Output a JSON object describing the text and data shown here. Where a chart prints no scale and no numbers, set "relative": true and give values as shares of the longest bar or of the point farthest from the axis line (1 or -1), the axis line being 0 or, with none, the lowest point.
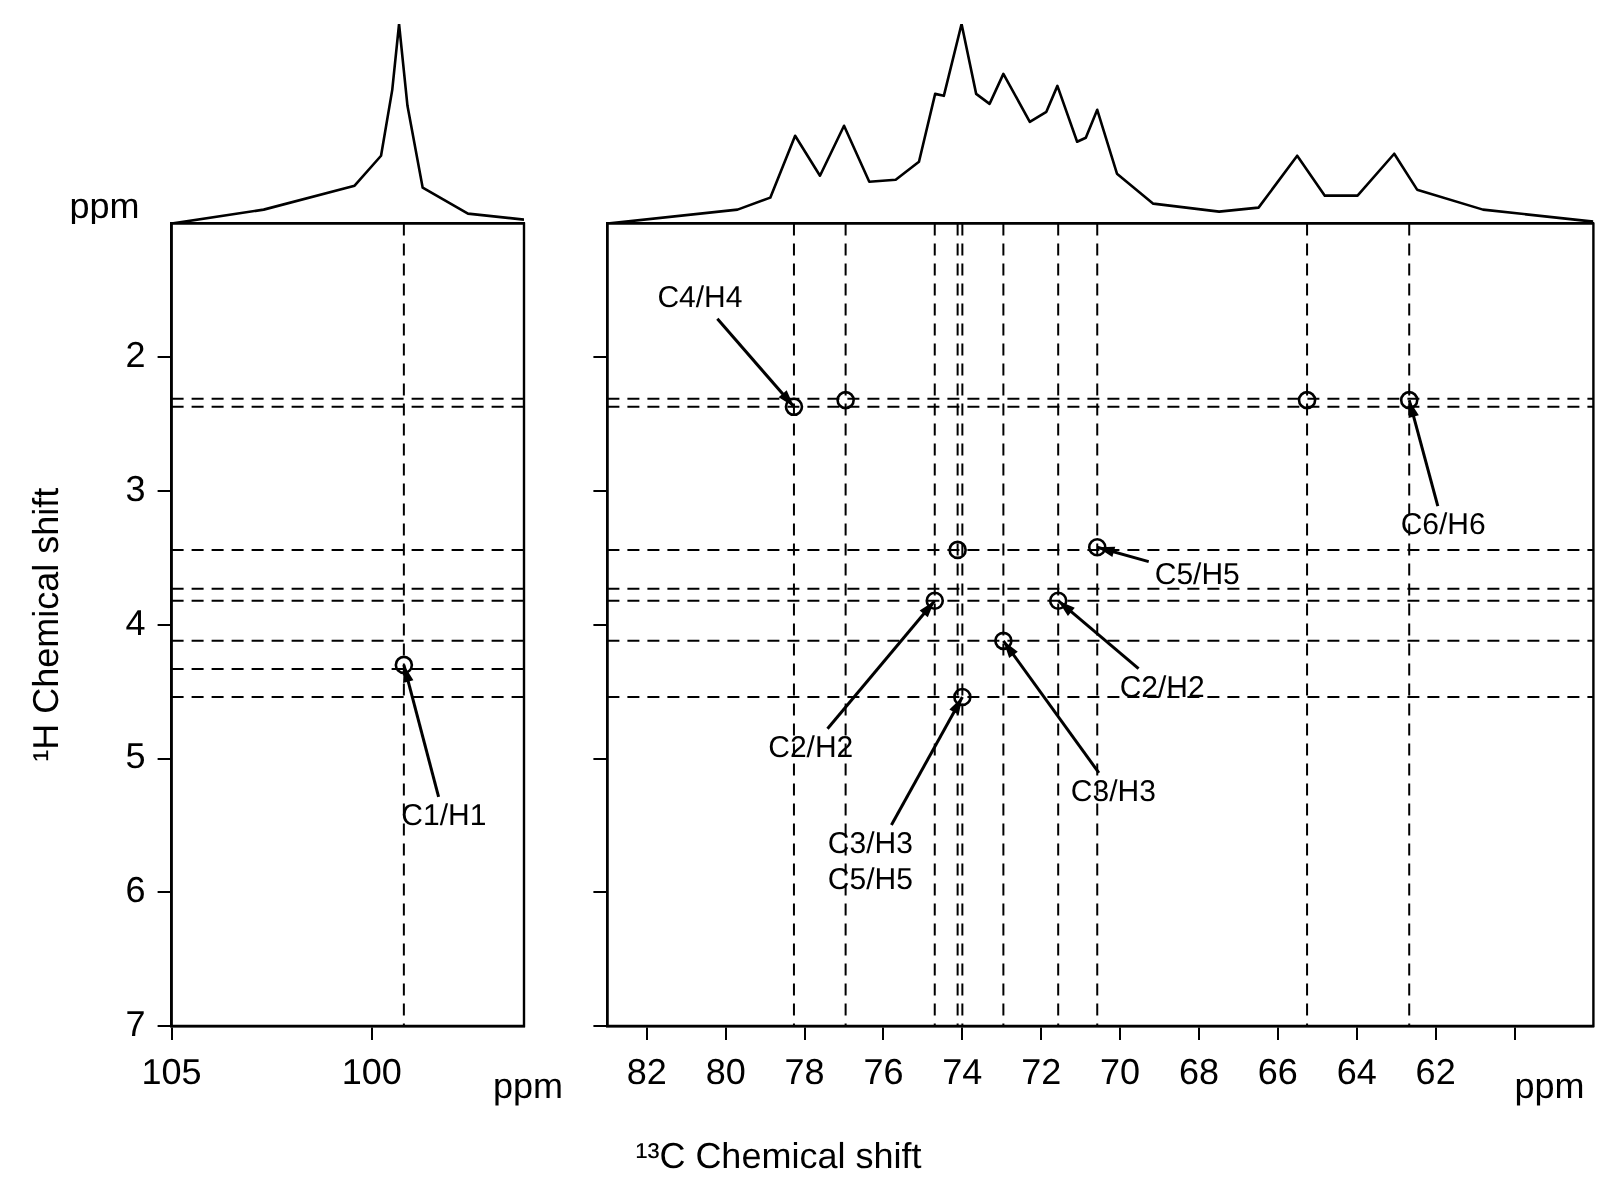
{
  "chart_data": [
    {
      "type": "line",
      "relative": true,
      "color": "#000000",
      "xlim": [
        105,
        96.2
      ],
      "tick_labels": false,
      "annotations": [
        "ppm"
      ],
      "x": [
        105,
        102.7,
        100.43,
        99.77,
        99.49,
        99.32,
        99.11,
        98.73,
        97.6,
        96.2
      ],
      "values": [
        0,
        0.07,
        0.19,
        0.34,
        0.67,
        1.0,
        0.59,
        0.18,
        0.05,
        0.02
      ]
    },
    {
      "type": "line",
      "relative": true,
      "color": "#000000",
      "xlim": [
        83,
        58
      ],
      "tick_labels": false,
      "x": [
        83,
        79.7,
        78.87,
        78.24,
        77.61,
        77.0,
        76.36,
        75.69,
        75.1,
        74.69,
        74.47,
        74.02,
        73.65,
        73.31,
        72.96,
        72.29,
        71.87,
        71.59,
        71.09,
        70.87,
        70.58,
        70.08,
        69.16,
        67.49,
        66.49,
        65.51,
        64.81,
        63.98,
        63.05,
        62.47,
        60.8,
        58
      ],
      "values": [
        0,
        0.07,
        0.13,
        0.44,
        0.24,
        0.49,
        0.21,
        0.22,
        0.31,
        0.65,
        0.64,
        1.0,
        0.65,
        0.6,
        0.75,
        0.51,
        0.56,
        0.69,
        0.41,
        0.43,
        0.57,
        0.25,
        0.1,
        0.06,
        0.08,
        0.34,
        0.14,
        0.14,
        0.35,
        0.17,
        0.07,
        0.01
      ]
    },
    {
      "type": "scatter",
      "color": "#000000",
      "marker": "circle",
      "xlim": [
        105,
        96.2
      ],
      "ylim": [
        7,
        1
      ],
      "xticks": [
        105,
        100
      ],
      "yticks": [
        2,
        3,
        4,
        5,
        6,
        7
      ],
      "xlabel": "ppm",
      "ylabel": "¹H Chemical shift",
      "x": [
        99.2
      ],
      "values": [
        4.3
      ],
      "ref_lines": [
        {
          "axis": "x",
          "value": 99.2,
          "line_style": "dashed"
        },
        {
          "axis": "y",
          "value": 2.31,
          "line_style": "dashed"
        },
        {
          "axis": "y",
          "value": 2.37,
          "line_style": "dashed"
        },
        {
          "axis": "y",
          "value": 3.44,
          "line_style": "dashed"
        },
        {
          "axis": "y",
          "value": 3.73,
          "line_style": "dashed"
        },
        {
          "axis": "y",
          "value": 3.82,
          "line_style": "dashed"
        },
        {
          "axis": "y",
          "value": 4.12,
          "line_style": "dashed"
        },
        {
          "axis": "y",
          "value": 4.33,
          "line_style": "dashed"
        },
        {
          "axis": "y",
          "value": 4.54,
          "line_style": "dashed"
        }
      ],
      "annotations": [
        {
          "text": "C1/H1",
          "x": 99.2,
          "y": 4.3
        }
      ]
    },
    {
      "type": "scatter",
      "color": "#000000",
      "marker": "circle",
      "xlim": [
        83,
        58
      ],
      "ylim": [
        7,
        1
      ],
      "xticks": [
        82,
        80,
        78,
        76,
        74,
        72,
        70,
        68,
        66,
        64,
        62,
        {
          "value": 60,
          "label": null
        }
      ],
      "yticks": [
        2,
        3,
        4,
        5,
        6,
        7
      ],
      "tick_labels": "x",
      "xlabel": "¹³C Chemical shift",
      "x": [
        78.27,
        76.96,
        74.7,
        74.12,
        74.0,
        72.96,
        71.57,
        70.58,
        65.26,
        62.67
      ],
      "values": [
        2.37,
        2.32,
        3.82,
        3.44,
        4.54,
        4.12,
        3.82,
        3.42,
        2.32,
        2.32
      ],
      "ref_lines": [
        {
          "axis": "x",
          "value": 78.27,
          "line_style": "dashed"
        },
        {
          "axis": "x",
          "value": 76.96,
          "line_style": "dashed"
        },
        {
          "axis": "x",
          "value": 74.7,
          "line_style": "dashed"
        },
        {
          "axis": "x",
          "value": 74.12,
          "line_style": "dashed"
        },
        {
          "axis": "x",
          "value": 74.0,
          "line_style": "dashed"
        },
        {
          "axis": "x",
          "value": 72.96,
          "line_style": "dashed"
        },
        {
          "axis": "x",
          "value": 71.57,
          "line_style": "dashed"
        },
        {
          "axis": "x",
          "value": 70.58,
          "line_style": "dashed"
        },
        {
          "axis": "x",
          "value": 65.26,
          "line_style": "dashed"
        },
        {
          "axis": "x",
          "value": 62.67,
          "line_style": "dashed"
        },
        {
          "axis": "y",
          "value": 2.31,
          "line_style": "dashed"
        },
        {
          "axis": "y",
          "value": 2.37,
          "line_style": "dashed"
        },
        {
          "axis": "y",
          "value": 3.44,
          "line_style": "dashed"
        },
        {
          "axis": "y",
          "value": 3.73,
          "line_style": "dashed"
        },
        {
          "axis": "y",
          "value": 3.82,
          "line_style": "dashed"
        },
        {
          "axis": "y",
          "value": 4.12,
          "line_style": "dashed"
        },
        {
          "axis": "y",
          "value": 4.54,
          "line_style": "dashed"
        }
      ],
      "annotations": [
        "ppm",
        {
          "text": "C4/H4",
          "x": 78.27,
          "y": 2.37
        },
        {
          "text": "C6/H6",
          "x": 62.67,
          "y": 2.32
        },
        {
          "text": "C5/H5",
          "x": 70.58,
          "y": 3.42
        },
        {
          "text": "C2/H2",
          "x": 71.57,
          "y": 3.82
        },
        {
          "text": "C3/H3",
          "x": 72.96,
          "y": 4.12
        },
        {
          "text": "C2/H2",
          "x": 74.7,
          "y": 3.82
        },
        {
          "text": "C3/H3\nC5/H5",
          "x": 74.0,
          "y": 4.54
        }
      ]
    }
  ]
}
